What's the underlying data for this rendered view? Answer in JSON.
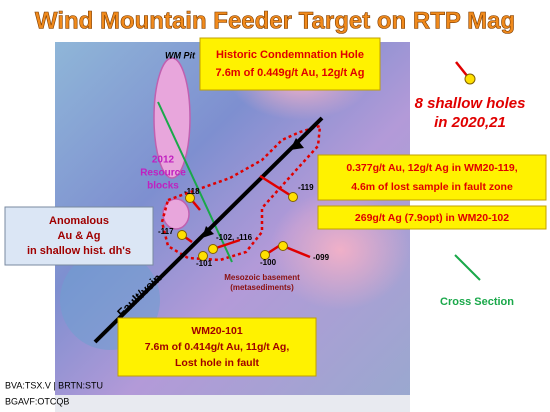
{
  "title": "Wind Mountain Feeder Target on RTP Mag",
  "map": {
    "pit_label": "WM Pit",
    "resource_blocks": [
      "2012",
      "Resource",
      "blocks"
    ],
    "fault_label": "Fault/vein",
    "basement_label": [
      "Mesozoic basement",
      "(metasediments)"
    ],
    "holes": [
      "-118",
      "-119",
      "-117",
      "-102, -116",
      "-101",
      "-100",
      "-099"
    ]
  },
  "callouts": {
    "historic": [
      "Historic Condemnation Hole",
      "7.6m of 0.449g/t Au, 12g/t Ag"
    ],
    "wm20_119": [
      "0.377g/t Au, 12g/t Ag in WM20-119,",
      "4.6m of lost sample in fault zone"
    ],
    "wm20_102": [
      "269g/t Ag (7.9opt) in WM20-102"
    ],
    "anomalous": [
      "Anomalous",
      "Au & Ag",
      "in shallow hist. dh's"
    ],
    "wm20_101": [
      "WM20-101",
      "7.6m of 0.414g/t Au, 11g/t Ag,",
      "Lost hole in fault"
    ]
  },
  "legend": {
    "holes": [
      "8 shallow holes",
      "in 2020,21"
    ],
    "cross_section": "Cross Section"
  },
  "footer": [
    "BVA:TSX.V | BRTN:STU",
    "BGAVF:OTCQB"
  ]
}
